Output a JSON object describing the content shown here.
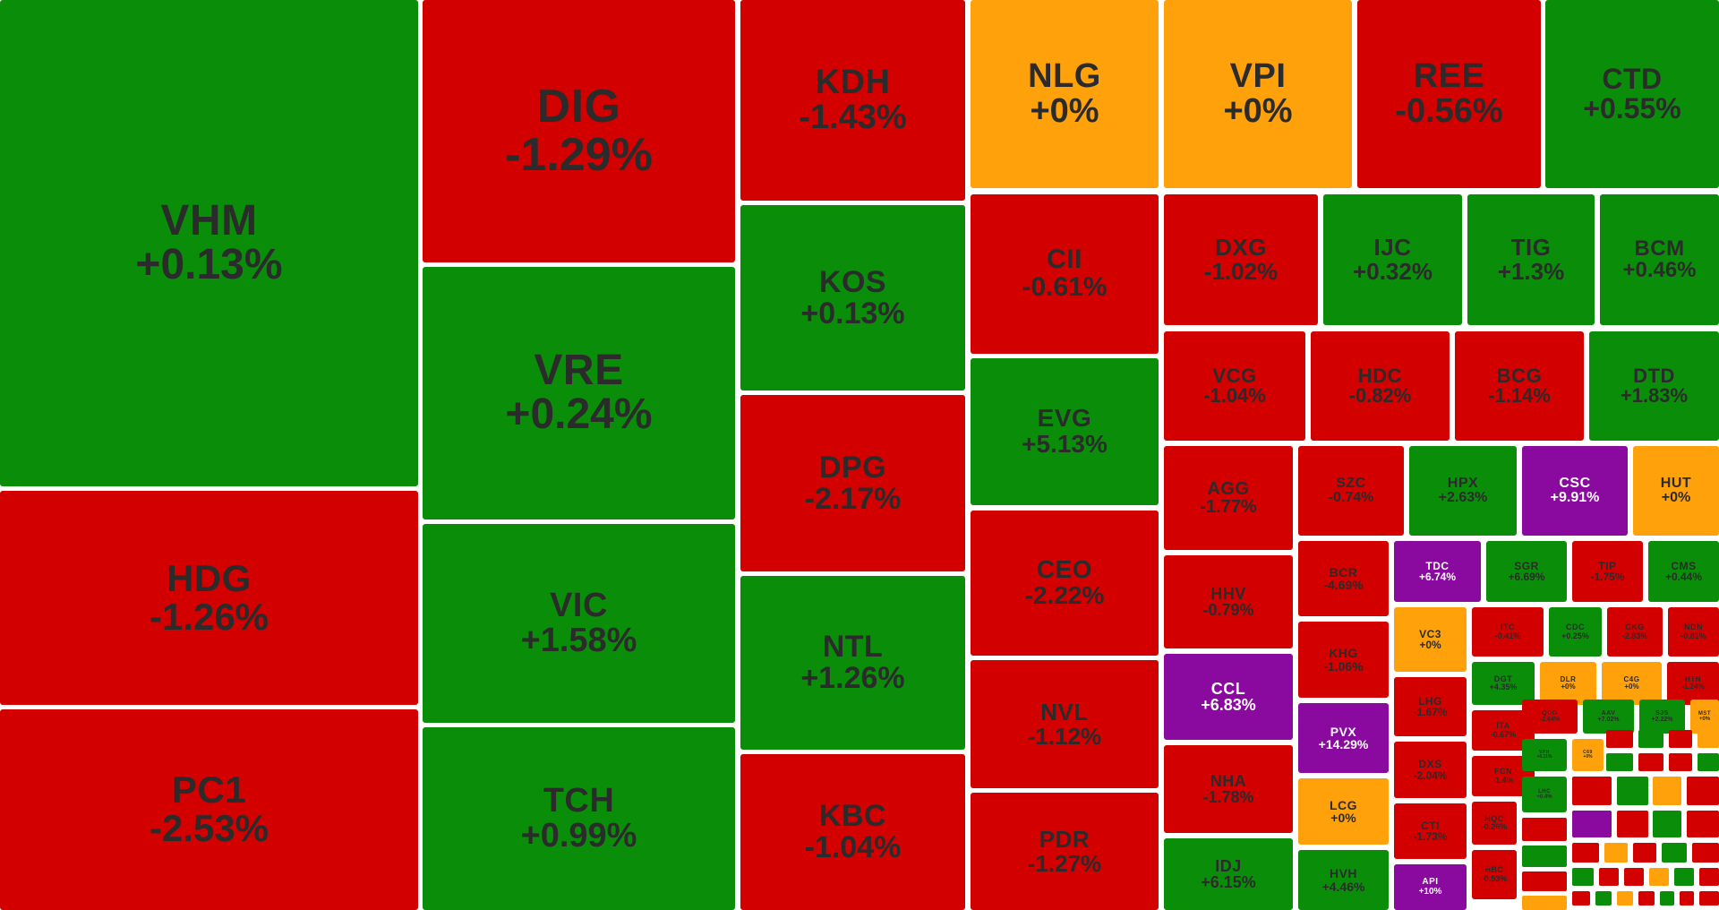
{
  "colors": {
    "up": "#0a8e0a",
    "down": "#d30000",
    "ref": "#ffa10a",
    "ceiling": "#8a0aa0",
    "text_dark": "#2b2b2b",
    "text_light": "#ffffff"
  },
  "tiles": [
    {
      "symbol": "VHM",
      "change": "+0.13%",
      "status": "up"
    },
    {
      "symbol": "HDG",
      "change": "-1.26%",
      "status": "down"
    },
    {
      "symbol": "PC1",
      "change": "-2.53%",
      "status": "down"
    },
    {
      "symbol": "DIG",
      "change": "-1.29%",
      "status": "down"
    },
    {
      "symbol": "VRE",
      "change": "+0.24%",
      "status": "up"
    },
    {
      "symbol": "VIC",
      "change": "+1.58%",
      "status": "up"
    },
    {
      "symbol": "TCH",
      "change": "+0.99%",
      "status": "up"
    },
    {
      "symbol": "KDH",
      "change": "-1.43%",
      "status": "down"
    },
    {
      "symbol": "KOS",
      "change": "+0.13%",
      "status": "up"
    },
    {
      "symbol": "DPG",
      "change": "-2.17%",
      "status": "down"
    },
    {
      "symbol": "NTL",
      "change": "+1.26%",
      "status": "up"
    },
    {
      "symbol": "KBC",
      "change": "-1.04%",
      "status": "down"
    },
    {
      "symbol": "NLG",
      "change": "+0%",
      "status": "ref"
    },
    {
      "symbol": "VPI",
      "change": "+0%",
      "status": "ref"
    },
    {
      "symbol": "REE",
      "change": "-0.56%",
      "status": "down"
    },
    {
      "symbol": "CTD",
      "change": "+0.55%",
      "status": "up"
    },
    {
      "symbol": "CII",
      "change": "-0.61%",
      "status": "down"
    },
    {
      "symbol": "EVG",
      "change": "+5.13%",
      "status": "up"
    },
    {
      "symbol": "CEO",
      "change": "-2.22%",
      "status": "down"
    },
    {
      "symbol": "NVL",
      "change": "-1.12%",
      "status": "down"
    },
    {
      "symbol": "PDR",
      "change": "-1.27%",
      "status": "down"
    },
    {
      "symbol": "DXG",
      "change": "-1.02%",
      "status": "down"
    },
    {
      "symbol": "IJC",
      "change": "+0.32%",
      "status": "up"
    },
    {
      "symbol": "TIG",
      "change": "+1.3%",
      "status": "up"
    },
    {
      "symbol": "BCM",
      "change": "+0.46%",
      "status": "up"
    },
    {
      "symbol": "VCG",
      "change": "-1.04%",
      "status": "down"
    },
    {
      "symbol": "HDC",
      "change": "-0.82%",
      "status": "down"
    },
    {
      "symbol": "BCG",
      "change": "-1.14%",
      "status": "down"
    },
    {
      "symbol": "DTD",
      "change": "+1.83%",
      "status": "up"
    },
    {
      "symbol": "AGG",
      "change": "-1.77%",
      "status": "down"
    },
    {
      "symbol": "SZC",
      "change": "-0.74%",
      "status": "down"
    },
    {
      "symbol": "HPX",
      "change": "+2.63%",
      "status": "up"
    },
    {
      "symbol": "CSC",
      "change": "+9.91%",
      "status": "ceiling"
    },
    {
      "symbol": "HUT",
      "change": "+0%",
      "status": "ref"
    },
    {
      "symbol": "HHV",
      "change": "-0.79%",
      "status": "down"
    },
    {
      "symbol": "BCR",
      "change": "-4.69%",
      "status": "down"
    },
    {
      "symbol": "TDC",
      "change": "+6.74%",
      "status": "ceiling"
    },
    {
      "symbol": "SGR",
      "change": "+6.69%",
      "status": "up"
    },
    {
      "symbol": "TIP",
      "change": "-1.75%",
      "status": "down"
    },
    {
      "symbol": "CMS",
      "change": "+0.44%",
      "status": "up"
    },
    {
      "symbol": "CCL",
      "change": "+6.83%",
      "status": "ceiling"
    },
    {
      "symbol": "KHG",
      "change": "-1.06%",
      "status": "down"
    },
    {
      "symbol": "VC3",
      "change": "+0%",
      "status": "ref"
    },
    {
      "symbol": "ITC",
      "change": "-0.41%",
      "status": "down"
    },
    {
      "symbol": "CDC",
      "change": "+0.25%",
      "status": "up"
    },
    {
      "symbol": "CKG",
      "change": "-2.83%",
      "status": "down"
    },
    {
      "symbol": "NDN",
      "change": "-0.81%",
      "status": "down"
    },
    {
      "symbol": "PVX",
      "change": "+14.29%",
      "status": "ceiling"
    },
    {
      "symbol": "LHG",
      "change": "-1.67%",
      "status": "down"
    },
    {
      "symbol": "DGT",
      "change": "+4.35%",
      "status": "up"
    },
    {
      "symbol": "DLR",
      "change": "+0%",
      "status": "ref"
    },
    {
      "symbol": "C4G",
      "change": "+0%",
      "status": "ref"
    },
    {
      "symbol": "HTN",
      "change": "-1.24%",
      "status": "down"
    },
    {
      "symbol": "NHA",
      "change": "-1.78%",
      "status": "down"
    },
    {
      "symbol": "LCG",
      "change": "+0%",
      "status": "ref"
    },
    {
      "symbol": "DXS",
      "change": "-2.04%",
      "status": "down"
    },
    {
      "symbol": "ITA",
      "change": "-0.67%",
      "status": "down"
    },
    {
      "symbol": "QCG",
      "change": "-2.64%",
      "status": "down"
    },
    {
      "symbol": "AAV",
      "change": "+7.02%",
      "status": "up"
    },
    {
      "symbol": "SJS",
      "change": "+2.22%",
      "status": "up"
    },
    {
      "symbol": "MST",
      "change": "+0%",
      "status": "ref"
    },
    {
      "symbol": "FCN",
      "change": "-1.4%",
      "status": "down"
    },
    {
      "symbol": "VPH",
      "change": "+0.11%",
      "status": "up"
    },
    {
      "symbol": "C69",
      "change": "+0%",
      "status": "ref"
    },
    {
      "symbol": "CTI",
      "change": "-1.73%",
      "status": "down"
    },
    {
      "symbol": "LHC",
      "change": "+0.4%",
      "status": "up"
    },
    {
      "symbol": "IDJ",
      "change": "+6.15%",
      "status": "up"
    },
    {
      "symbol": "HVH",
      "change": "+4.46%",
      "status": "up"
    },
    {
      "symbol": "API",
      "change": "+10%",
      "status": "ceiling"
    },
    {
      "symbol": "HQC",
      "change": "-0.26%",
      "status": "down"
    },
    {
      "symbol": "HBC",
      "change": "-0.53%",
      "status": "down"
    }
  ]
}
